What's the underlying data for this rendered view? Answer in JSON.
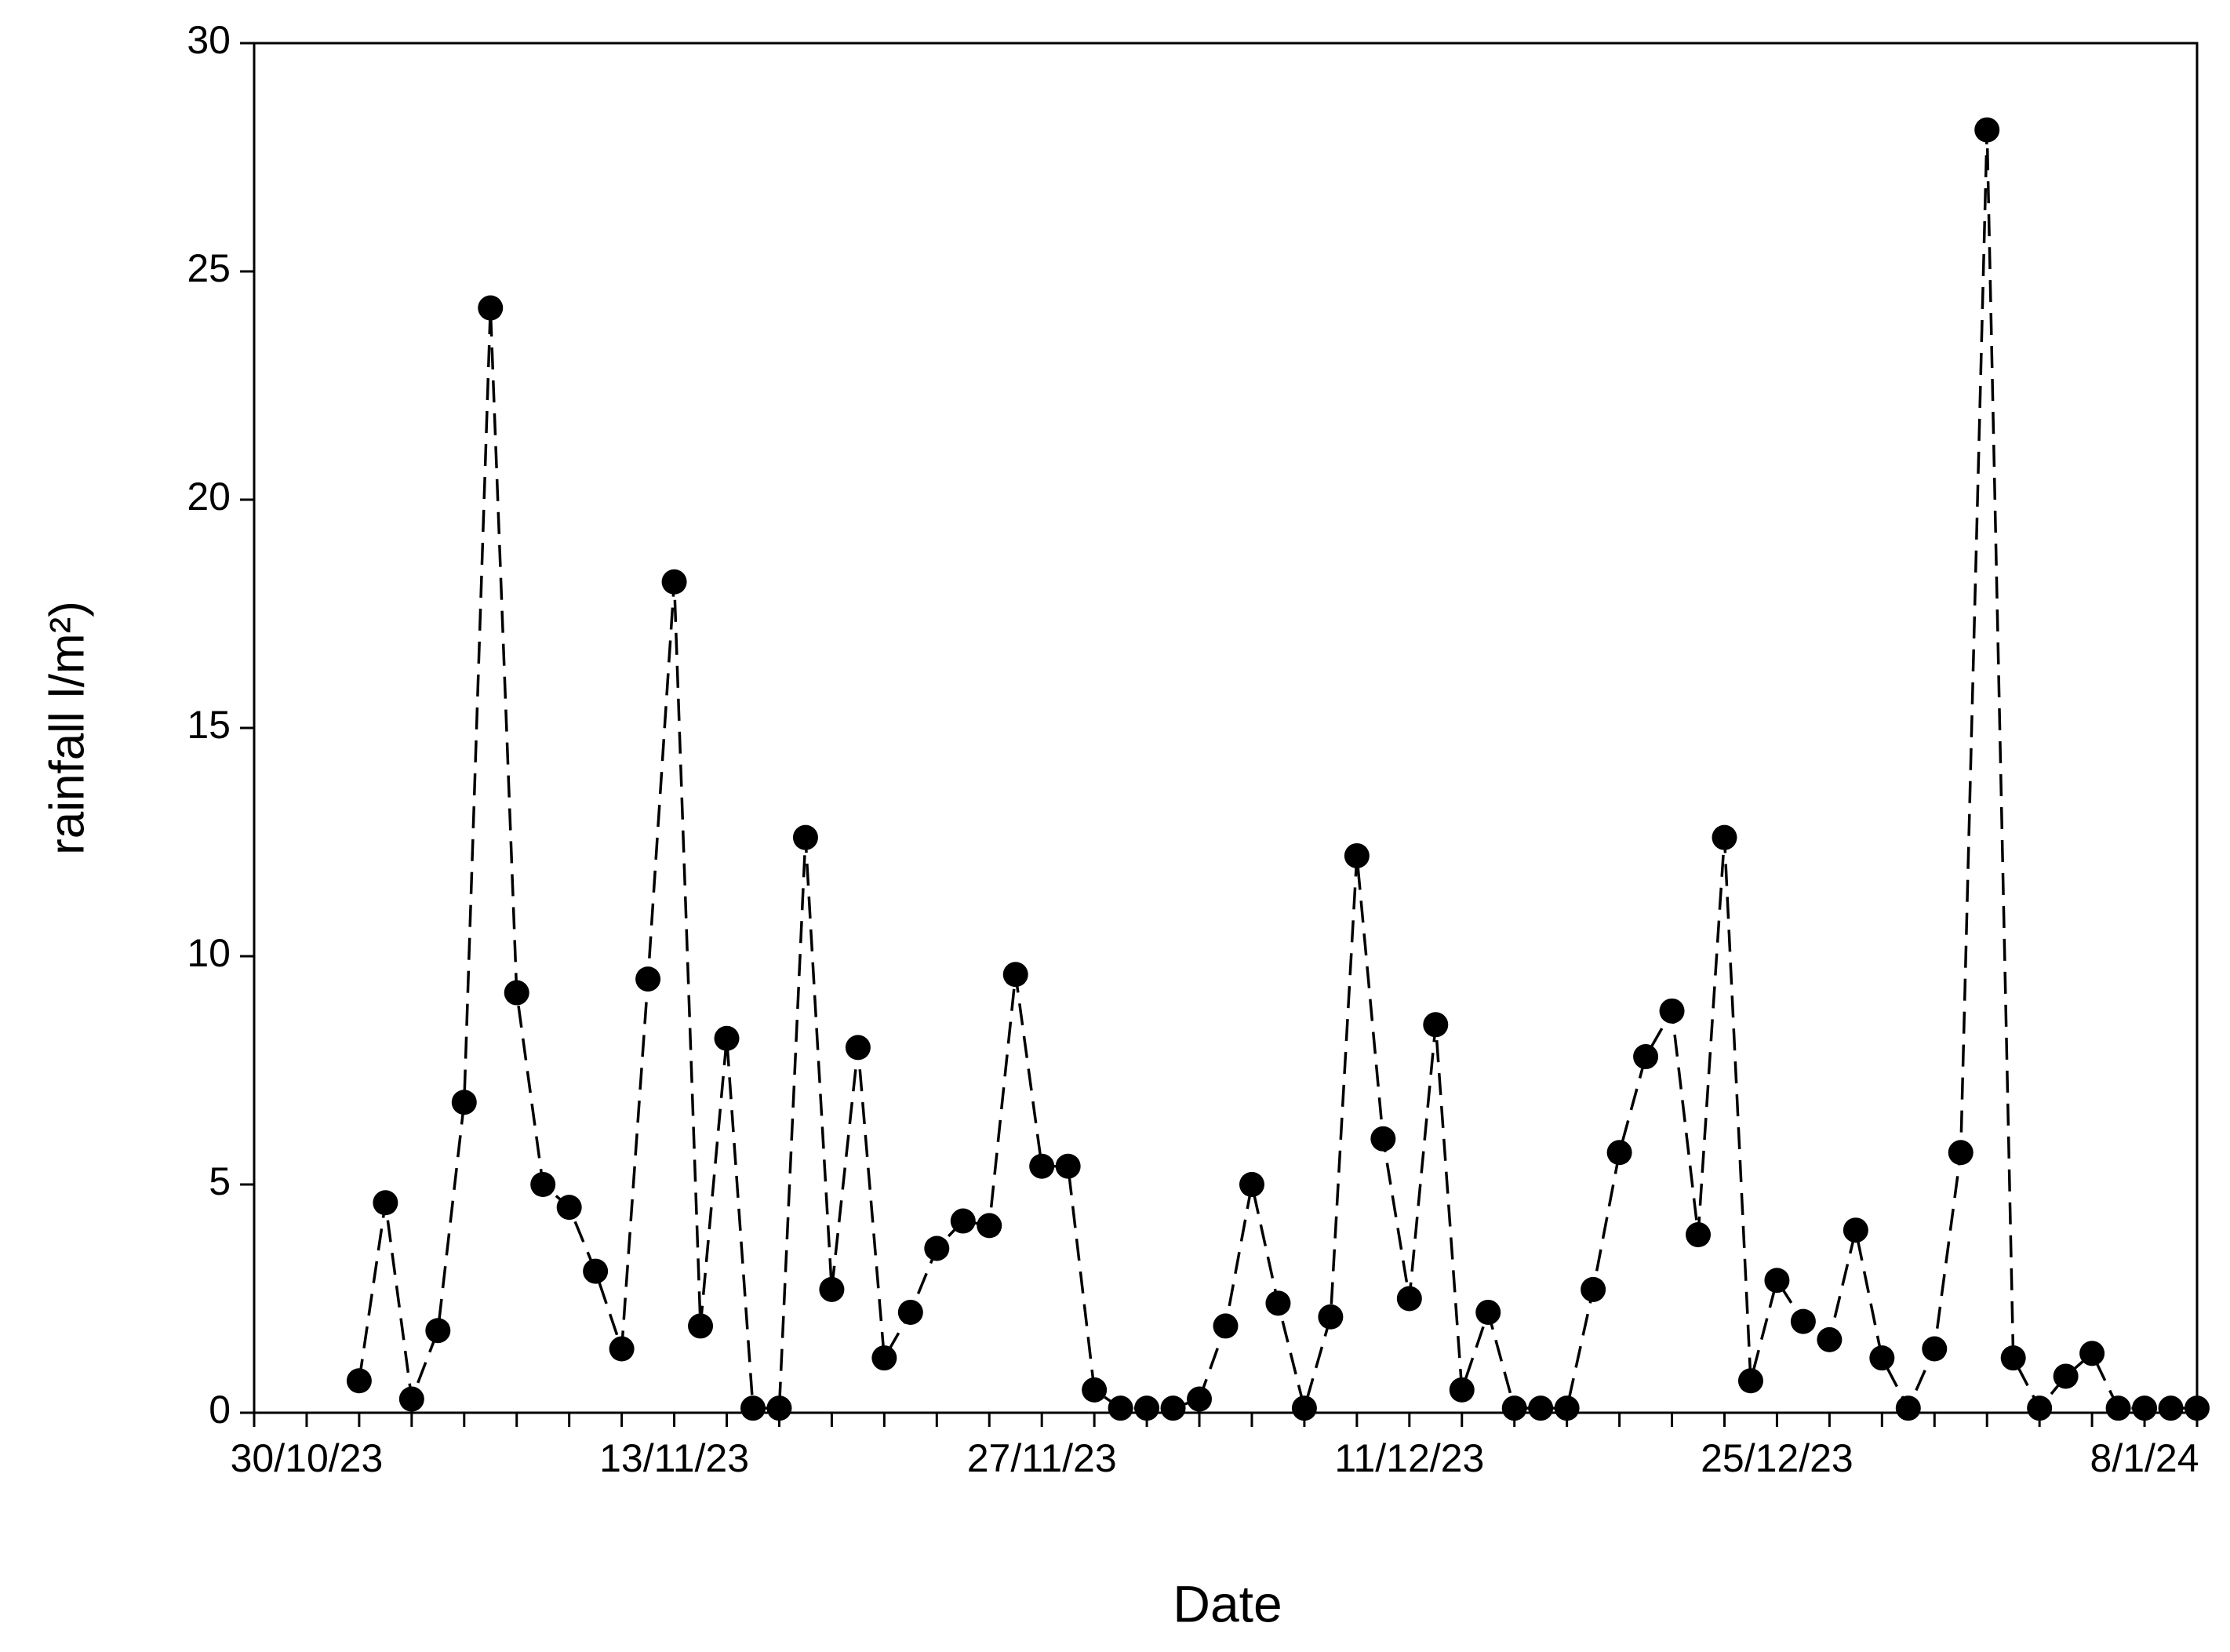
{
  "chart_data": {
    "type": "line",
    "x_label": "Date",
    "y_label": "rainfall l/m²)",
    "x": [
      "1/11/23",
      "2/11/23",
      "3/11/23",
      "4/11/23",
      "5/11/23",
      "6/11/23",
      "7/11/23",
      "8/11/23",
      "9/11/23",
      "10/11/23",
      "11/11/23",
      "12/11/23",
      "13/11/23",
      "14/11/23",
      "15/11/23",
      "16/11/23",
      "17/11/23",
      "18/11/23",
      "19/11/23",
      "20/11/23",
      "21/11/23",
      "22/11/23",
      "23/11/23",
      "24/11/23",
      "25/11/23",
      "26/11/23",
      "27/11/23",
      "28/11/23",
      "29/11/23",
      "30/11/23",
      "1/12/23",
      "2/12/23",
      "3/12/23",
      "4/12/23",
      "5/12/23",
      "6/12/23",
      "7/12/23",
      "8/12/23",
      "9/12/23",
      "10/12/23",
      "11/12/23",
      "12/12/23",
      "13/12/23",
      "14/12/23",
      "15/12/23",
      "16/12/23",
      "17/12/23",
      "18/12/23",
      "19/12/23",
      "20/12/23",
      "21/12/23",
      "22/12/23",
      "23/12/23",
      "24/12/23",
      "25/12/23",
      "26/12/23",
      "27/12/23",
      "28/12/23",
      "29/12/23",
      "30/12/23",
      "31/12/23",
      "1/1/24",
      "2/1/24",
      "3/1/24",
      "4/1/24",
      "5/1/24",
      "6/1/24",
      "7/1/24",
      "8/1/24",
      "9/1/24",
      "10/1/24"
    ],
    "series": [
      {
        "color": "#000000",
        "values": [
          0.7,
          4.6,
          0.3,
          1.8,
          6.8,
          24.2,
          9.2,
          5.0,
          4.5,
          3.1,
          1.4,
          9.5,
          18.2,
          1.9,
          8.2,
          0.1,
          0.1,
          12.6,
          2.7,
          8.0,
          1.2,
          2.2,
          3.6,
          4.2,
          4.1,
          9.6,
          5.4,
          5.4,
          0.5,
          0.1,
          0.1,
          0.1,
          0.3,
          1.9,
          5.0,
          2.4,
          0.1,
          2.1,
          12.2,
          6.0,
          2.5,
          8.5,
          0.5,
          2.2,
          0.1,
          0.1,
          0.1,
          2.7,
          5.7,
          7.8,
          8.8,
          3.9,
          12.6,
          0.7,
          2.9,
          2.0,
          1.6,
          4.0,
          1.2,
          0.1,
          1.4,
          5.7,
          28.1,
          1.2,
          0.1,
          0.8,
          1.3,
          0.1,
          0.1,
          0.1,
          0.1
        ]
      }
    ],
    "xlim": [
      "28/10/23",
      "10/1/24"
    ],
    "xticks": [
      "30/10/23",
      "13/11/23",
      "27/11/23",
      "11/12/23",
      "25/12/23",
      "8/1/24"
    ],
    "xminorticks": [
      "28/10/23",
      "1/11/23",
      "3/11/23",
      "5/11/23",
      "7/11/23",
      "9/11/23",
      "11/11/23",
      "15/11/23",
      "17/11/23",
      "19/11/23",
      "21/11/23",
      "23/11/23",
      "25/11/23",
      "29/11/23",
      "1/12/23",
      "3/12/23",
      "5/12/23",
      "7/12/23",
      "9/12/23",
      "13/12/23",
      "15/12/23",
      "17/12/23",
      "19/12/23",
      "21/12/23",
      "23/12/23",
      "27/12/23",
      "29/12/23",
      "31/12/23",
      "2/1/24",
      "4/1/24",
      "6/1/24",
      "10/1/24"
    ],
    "ylim": [
      0,
      30
    ],
    "yticks": [
      0,
      5,
      10,
      15,
      20,
      25,
      30
    ]
  }
}
